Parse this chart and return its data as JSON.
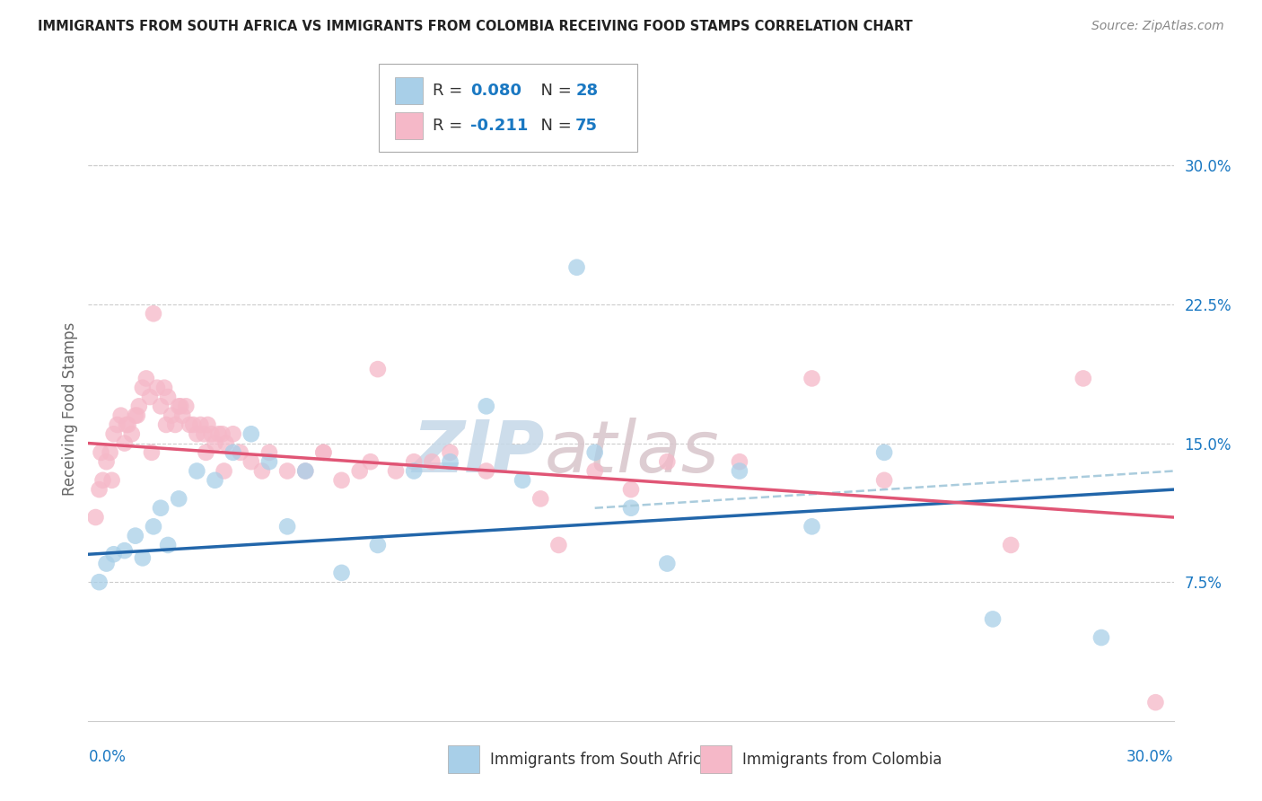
{
  "title": "IMMIGRANTS FROM SOUTH AFRICA VS IMMIGRANTS FROM COLOMBIA RECEIVING FOOD STAMPS CORRELATION CHART",
  "source": "Source: ZipAtlas.com",
  "ylabel": "Receiving Food Stamps",
  "xmin": 0.0,
  "xmax": 30.0,
  "ymin": 0.0,
  "ymax": 33.75,
  "yticks": [
    7.5,
    15.0,
    22.5,
    30.0
  ],
  "ytick_labels": [
    "7.5%",
    "15.0%",
    "22.5%",
    "30.0%"
  ],
  "color_blue": "#a8cfe8",
  "color_pink": "#f5b8c8",
  "color_blue_line": "#2266aa",
  "color_pink_line": "#e05575",
  "color_dashed": "#aaccdd",
  "color_r_value": "#1a78c2",
  "color_grid": "#cccccc",
  "watermark_zip": "ZIP",
  "watermark_atlas": "atlas",
  "south_africa_x": [
    0.3,
    0.5,
    0.7,
    1.0,
    1.3,
    1.5,
    1.8,
    2.0,
    2.2,
    2.5,
    3.0,
    3.5,
    4.0,
    4.5,
    5.0,
    5.5,
    6.0,
    7.0,
    8.0,
    9.0,
    10.0,
    11.0,
    12.0,
    13.5,
    14.0,
    15.0,
    16.0,
    18.0,
    20.0,
    22.0,
    25.0,
    28.0
  ],
  "south_africa_y": [
    7.5,
    8.5,
    9.0,
    9.2,
    10.0,
    8.8,
    10.5,
    11.5,
    9.5,
    12.0,
    13.5,
    13.0,
    14.5,
    15.5,
    14.0,
    10.5,
    13.5,
    8.0,
    9.5,
    13.5,
    14.0,
    17.0,
    13.0,
    24.5,
    14.5,
    11.5,
    8.5,
    13.5,
    10.5,
    14.5,
    5.5,
    4.5
  ],
  "colombia_x": [
    0.2,
    0.3,
    0.4,
    0.5,
    0.6,
    0.7,
    0.8,
    0.9,
    1.0,
    1.1,
    1.2,
    1.3,
    1.4,
    1.5,
    1.6,
    1.7,
    1.8,
    1.9,
    2.0,
    2.1,
    2.2,
    2.3,
    2.4,
    2.5,
    2.6,
    2.7,
    2.8,
    2.9,
    3.0,
    3.1,
    3.2,
    3.3,
    3.4,
    3.5,
    3.6,
    3.7,
    3.8,
    4.0,
    4.2,
    4.5,
    5.0,
    5.5,
    6.0,
    6.5,
    7.0,
    7.5,
    8.0,
    8.5,
    9.5,
    10.0,
    11.0,
    12.5,
    13.0,
    14.0,
    15.0,
    16.0,
    18.0,
    20.0,
    22.0,
    25.5,
    27.5,
    29.5,
    0.35,
    0.65,
    1.05,
    1.35,
    1.75,
    2.15,
    2.55,
    3.25,
    3.75,
    4.8,
    6.5,
    7.8,
    9.0
  ],
  "colombia_y": [
    11.0,
    12.5,
    13.0,
    14.0,
    14.5,
    15.5,
    16.0,
    16.5,
    15.0,
    16.0,
    15.5,
    16.5,
    17.0,
    18.0,
    18.5,
    17.5,
    22.0,
    18.0,
    17.0,
    18.0,
    17.5,
    16.5,
    16.0,
    17.0,
    16.5,
    17.0,
    16.0,
    16.0,
    15.5,
    16.0,
    15.5,
    16.0,
    15.5,
    15.0,
    15.5,
    15.5,
    15.0,
    15.5,
    14.5,
    14.0,
    14.5,
    13.5,
    13.5,
    14.5,
    13.0,
    13.5,
    19.0,
    13.5,
    14.0,
    14.5,
    13.5,
    12.0,
    9.5,
    13.5,
    12.5,
    14.0,
    14.0,
    18.5,
    13.0,
    9.5,
    18.5,
    1.0,
    14.5,
    13.0,
    16.0,
    16.5,
    14.5,
    16.0,
    17.0,
    14.5,
    13.5,
    13.5,
    14.5,
    14.0,
    14.0
  ],
  "blue_line_x0": 0.0,
  "blue_line_y0": 9.0,
  "blue_line_x1": 30.0,
  "blue_line_y1": 12.5,
  "pink_line_x0": 0.0,
  "pink_line_y0": 15.0,
  "pink_line_x1": 30.0,
  "pink_line_y1": 11.0,
  "dashed_line_x0": 14.0,
  "dashed_line_y0": 11.5,
  "dashed_line_x1": 30.0,
  "dashed_line_y1": 13.5
}
